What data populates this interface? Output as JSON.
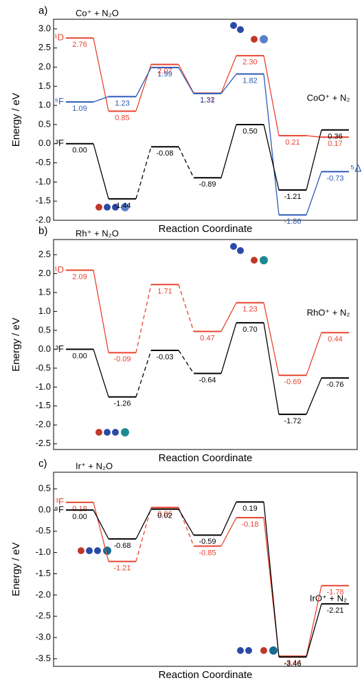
{
  "chart_data": [
    {
      "type": "energy-profile",
      "panel_label": "a)",
      "reactant_label": "Co⁺ + N₂O",
      "product_label": "CoO⁺ + N₂",
      "ylabel": "Energy / eV",
      "xlabel": "Reaction Coordinate",
      "ylim": [
        -2.0,
        3.25
      ],
      "yticks": [
        {
          "value": -2.0,
          "label": "-2.0"
        },
        -1.5,
        {
          "value": -1.0,
          "label": "-1.0"
        },
        -0.5,
        {
          "value": 0.0,
          "label": "0.0"
        },
        0.5,
        {
          "value": 1.0,
          "label": "1.0"
        },
        1.5,
        {
          "value": 2.0,
          "label": "2.0"
        },
        2.5,
        {
          "value": 3.0,
          "label": "3.0"
        }
      ],
      "series": [
        {
          "name": "¹D",
          "color": "#e8432f",
          "values": [
            2.76,
            0.85,
            2.07,
            1.32,
            2.3,
            0.21,
            0.17
          ],
          "value_labels": [
            "2.76",
            "0.85",
            "2.07",
            "1.32",
            "2.30",
            "0.21",
            "0.17"
          ],
          "dashed_segments": []
        },
        {
          "name": "⁵F",
          "end_name": "⁵Δ",
          "color": "#2b58b5",
          "values": [
            1.09,
            1.23,
            1.99,
            1.31,
            1.82,
            -1.86,
            -0.73
          ],
          "value_labels": [
            "1.09",
            "1.23",
            "1.99",
            "1.31",
            "1.82",
            "-1.86",
            "-0.73"
          ],
          "dashed_segments": []
        },
        {
          "name": "³F",
          "color": "#000000",
          "values": [
            0.0,
            -1.44,
            -0.08,
            -0.89,
            0.5,
            -1.21,
            0.36
          ],
          "value_labels": [
            "0.00",
            "-1.44",
            "-0.08",
            "-0.89",
            "0.50",
            "-1.21",
            "0.36"
          ],
          "dashed_segments": [
            1,
            2
          ]
        }
      ]
    },
    {
      "type": "energy-profile",
      "panel_label": "b)",
      "reactant_label": "Rh⁺ + N₂O",
      "product_label": "RhO⁺ + N₂",
      "ylabel": "Energy / eV",
      "xlabel": "Reaction Coordinate",
      "ylim": [
        -2.65,
        2.9
      ],
      "yticks": [
        -2.5,
        {
          "value": -2.0,
          "label": "-2.0"
        },
        -1.5,
        {
          "value": -1.0,
          "label": "-1.0"
        },
        -0.5,
        {
          "value": 0.0,
          "label": "0.0"
        },
        0.5,
        {
          "value": 1.0,
          "label": "1.0"
        },
        1.5,
        {
          "value": 2.0,
          "label": "2.0"
        },
        2.5
      ],
      "series": [
        {
          "name": "¹D",
          "color": "#e8432f",
          "values": [
            2.09,
            -0.09,
            1.71,
            0.47,
            1.23,
            -0.69,
            0.44
          ],
          "value_labels": [
            "2.09",
            "-0.09",
            "1.71",
            "0.47",
            "1.23",
            "-0.69",
            "0.44"
          ],
          "dashed_segments": [
            1,
            2
          ]
        },
        {
          "name": "³F",
          "color": "#000000",
          "values": [
            0.0,
            -1.26,
            -0.03,
            -0.64,
            0.7,
            -1.72,
            -0.76
          ],
          "value_labels": [
            "0.00",
            "-1.26",
            "-0.03",
            "-0.64",
            "0.70",
            "-1.72",
            "-0.76"
          ],
          "dashed_segments": [
            1,
            2
          ]
        }
      ]
    },
    {
      "type": "energy-profile",
      "panel_label": "c)",
      "reactant_label": "Ir⁺ + N₂O",
      "product_label": "IrO⁺ + N₂",
      "ylabel": "Energy / eV",
      "xlabel": "Reaction Coordinate",
      "ylim": [
        -3.68,
        0.89
      ],
      "yticks": [
        -3.5,
        {
          "value": -3.0,
          "label": "-3.0"
        },
        -2.5,
        {
          "value": -2.0,
          "label": "-2.0"
        },
        -1.5,
        {
          "value": -1.0,
          "label": "-1.0"
        },
        -0.5,
        {
          "value": 0.0,
          "label": "0.0"
        },
        0.5
      ],
      "series": [
        {
          "name": "³F",
          "color": "#e8432f",
          "values": [
            0.18,
            -1.21,
            0.06,
            -0.85,
            -0.18,
            -3.44,
            -1.78
          ],
          "value_labels": [
            "0.18",
            "-1.21",
            "0.06",
            "-0.85",
            "-0.18",
            "-3.44",
            "-1.78"
          ],
          "dashed_segments": [
            1,
            2
          ]
        },
        {
          "name": "⁵F",
          "color": "#000000",
          "values": [
            0.0,
            -0.68,
            0.02,
            -0.59,
            0.19,
            -3.46,
            -2.21
          ],
          "value_labels": [
            "0.00",
            "-0.68",
            "0.02",
            "-0.59",
            "0.19",
            "-3.46",
            "-2.21"
          ],
          "dashed_segments": []
        }
      ]
    }
  ]
}
